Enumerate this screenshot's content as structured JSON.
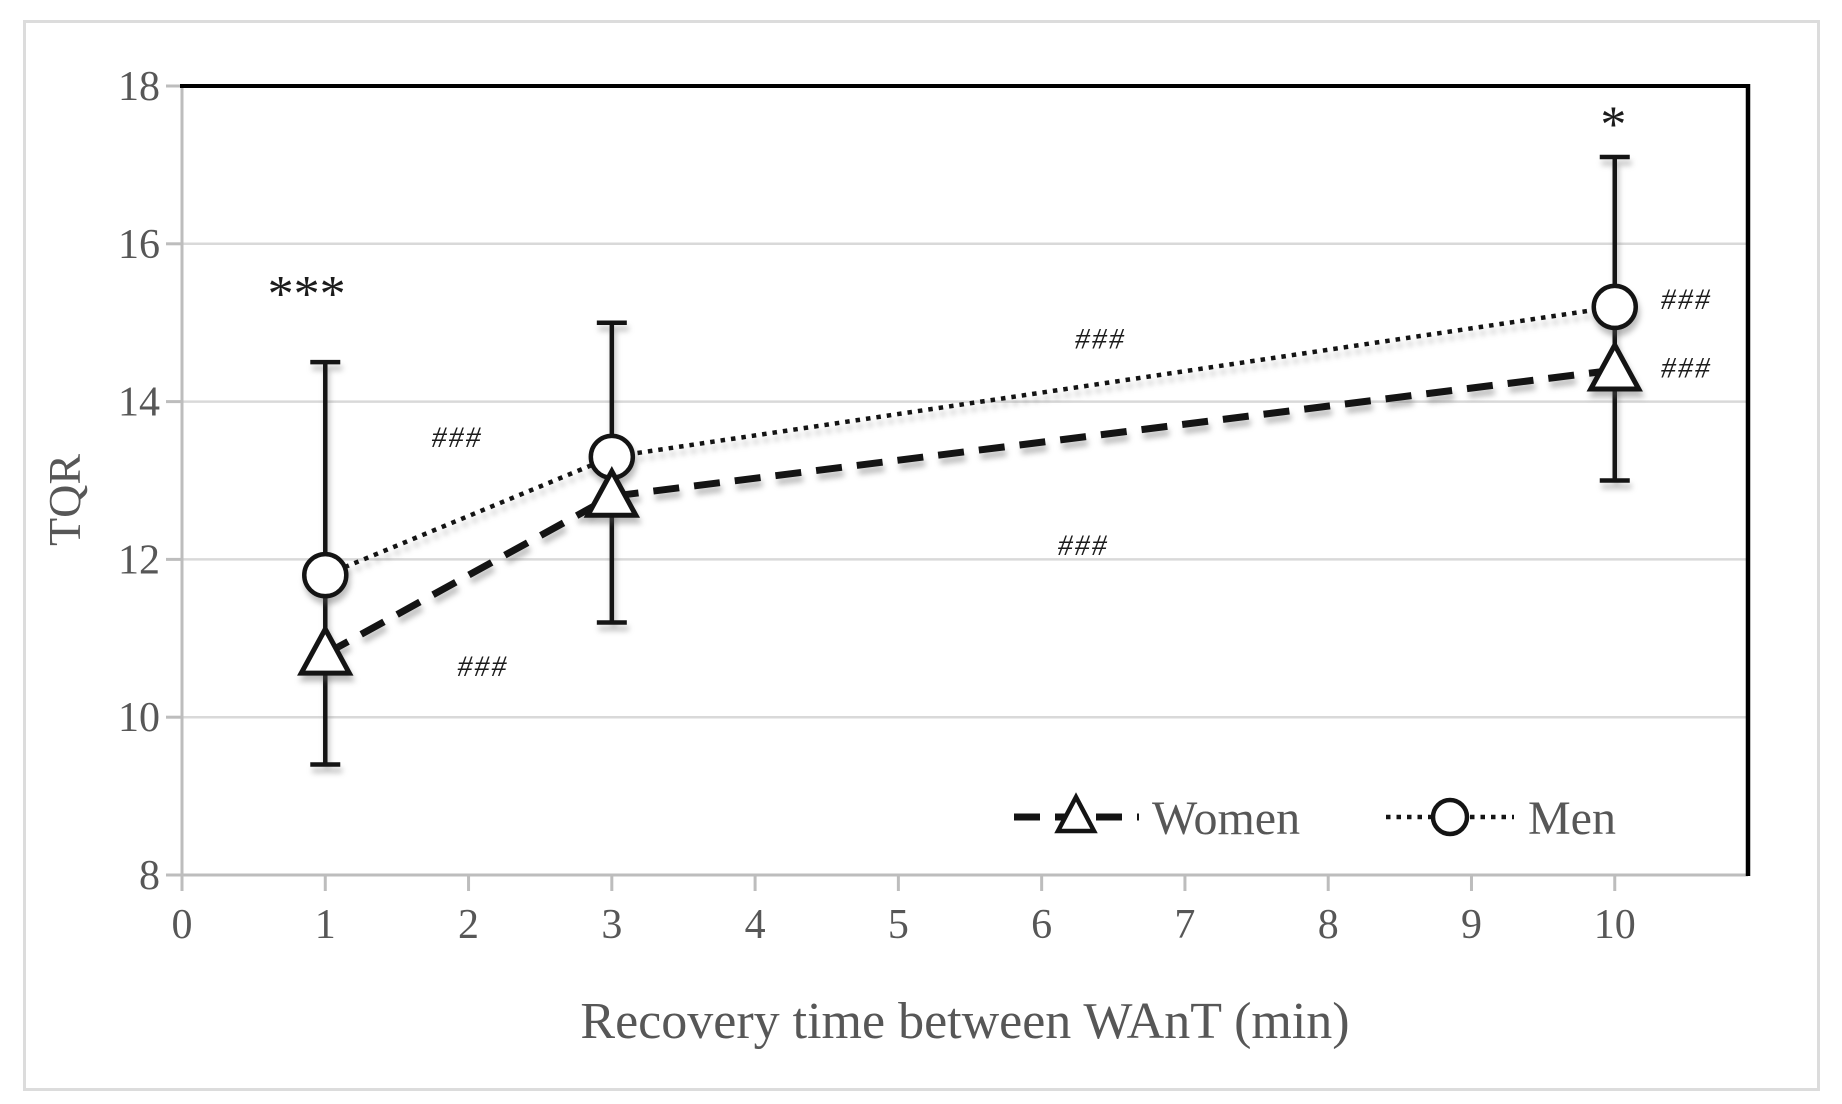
{
  "figure": {
    "background": "#ffffff",
    "outer_border_color": "#dcdcdc"
  },
  "chart_data": {
    "type": "line",
    "title": "",
    "xlabel": "Recovery time between WAnT (min)",
    "ylabel": "TQR",
    "xlim": [
      0,
      10.93
    ],
    "ylim": [
      8,
      18
    ],
    "x_ticks": [
      0,
      1,
      2,
      3,
      4,
      5,
      6,
      7,
      8,
      9,
      10
    ],
    "y_ticks": [
      8,
      10,
      12,
      14,
      16,
      18
    ],
    "grid": true,
    "legend_position": "inside-bottom-right",
    "series": [
      {
        "name": "Men",
        "marker": "circle",
        "line_style": "dotted",
        "color": "#141414",
        "x": [
          1,
          3,
          10
        ],
        "values": [
          11.8,
          13.3,
          15.2
        ]
      },
      {
        "name": "Women",
        "marker": "triangle",
        "line_style": "dashed",
        "color": "#141414",
        "x": [
          1,
          3,
          10
        ],
        "values": [
          10.8,
          12.8,
          14.4
        ]
      }
    ],
    "error_bars": [
      {
        "x": 1,
        "low": 9.4,
        "high": 14.5
      },
      {
        "x": 3,
        "low": 11.2,
        "high": 15.0
      },
      {
        "x": 10,
        "low": 13.0,
        "high": 17.1
      }
    ],
    "annotations": [
      {
        "text": "***",
        "x": 0.87,
        "y": 15.45,
        "size": "large"
      },
      {
        "text": "*",
        "x": 9.99,
        "y": 17.6,
        "size": "large"
      },
      {
        "text": "###",
        "x": 1.92,
        "y": 13.55,
        "size": "small"
      },
      {
        "text": "###",
        "x": 2.1,
        "y": 10.65,
        "size": "small"
      },
      {
        "text": "###",
        "x": 6.41,
        "y": 14.8,
        "size": "small"
      },
      {
        "text": "###",
        "x": 6.29,
        "y": 12.18,
        "size": "small"
      },
      {
        "text": "###",
        "x": 10.5,
        "y": 15.3,
        "size": "small"
      },
      {
        "text": "###",
        "x": 10.5,
        "y": 14.43,
        "size": "small"
      }
    ],
    "legend": {
      "items": [
        "Women",
        "Men"
      ]
    }
  },
  "colors": {
    "gridline": "#d9d9d9",
    "axis": "#bdbdbd",
    "frame_black": "#000000",
    "text_gray": "#575757",
    "series_black": "#141414",
    "annotation": "#1c1c1c"
  }
}
